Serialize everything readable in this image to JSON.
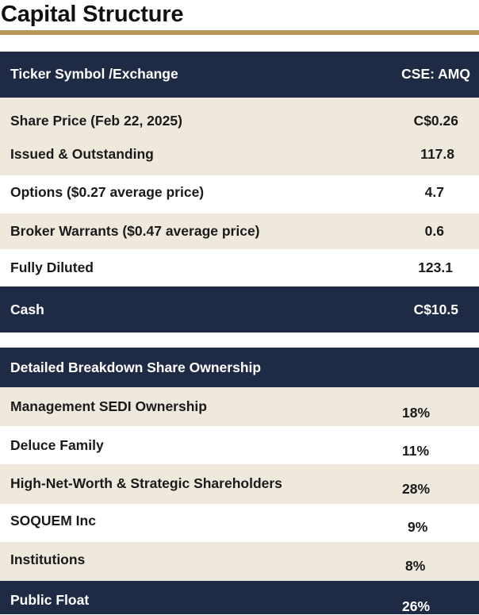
{
  "title": "Capital Structure",
  "colors": {
    "navy": "#1f2a44",
    "beige": "#efe9dd",
    "gold": "#b8975a"
  },
  "table1": {
    "header": {
      "label": "Ticker Symbol /Exchange",
      "value": "CSE: AMQ"
    },
    "rows": [
      {
        "label": "Share Price (Feb 22, 2025)",
        "value": "C$0.26"
      },
      {
        "label": "Issued & Outstanding",
        "value": "117.8"
      },
      {
        "label": "Options ($0.27 average price)",
        "value": "4.7"
      },
      {
        "label": "Broker Warrants ($0.47 average price)",
        "value": "0.6"
      },
      {
        "label": "Fully Diluted",
        "value": "123.1"
      }
    ],
    "footer": {
      "label": "Cash",
      "value": "C$10.5"
    }
  },
  "table2": {
    "header": {
      "label": "Detailed Breakdown Share Ownership"
    },
    "rows": [
      {
        "label": "Management SEDI Ownership",
        "value": "18%"
      },
      {
        "label": "Deluce Family",
        "value": "11%"
      },
      {
        "label": "High-Net-Worth & Strategic Shareholders",
        "value": "28%"
      },
      {
        "label": "SOQUEM Inc",
        "value": "9%"
      },
      {
        "label": "Institutions",
        "value": "8%"
      }
    ],
    "footer": {
      "label": "Public Float",
      "value": "26%"
    }
  }
}
